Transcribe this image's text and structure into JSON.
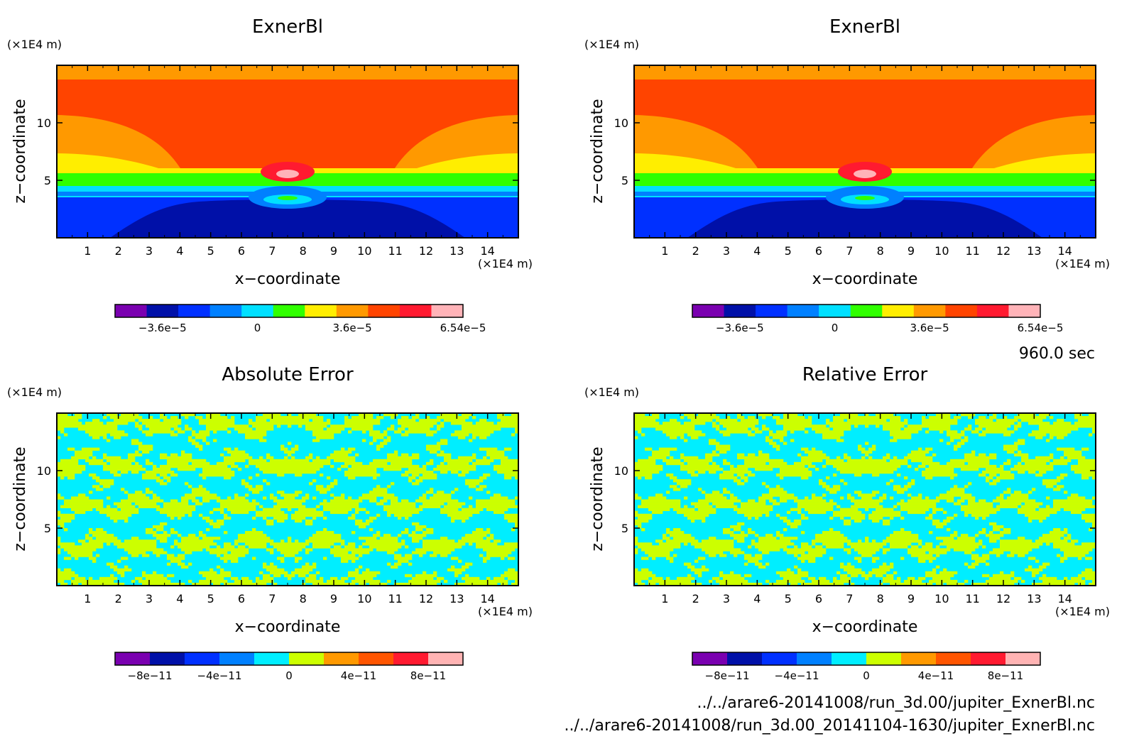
{
  "time_label": "960.0 sec",
  "files": [
    "../../arare6-20141008/run_3d.00/jupiter_ExnerBl.nc",
    "../../arare6-20141008/run_3d.00_20141104-1630/jupiter_ExnerBl.nc"
  ],
  "chart_data": [
    {
      "type": "heatmap",
      "title": "ExnerBl",
      "xlabel": "x−coordinate",
      "ylabel": "z−coordinate",
      "x_unit": "(×1E4 m)",
      "y_unit": "(×1E4 m)",
      "xlim": [
        0,
        15
      ],
      "ylim": [
        0,
        15
      ],
      "xticks": [
        1,
        2,
        3,
        4,
        5,
        6,
        7,
        8,
        9,
        10,
        11,
        12,
        13,
        14
      ],
      "yticks": [
        5,
        10
      ],
      "colorbar": {
        "colors": [
          "#7a00b0",
          "#0010a8",
          "#0030ff",
          "#0080ff",
          "#00e0ff",
          "#30ff00",
          "#ffee00",
          "#ff9900",
          "#ff4400",
          "#ff1a30",
          "#ffb3b8"
        ],
        "tick_values": [
          -3.6e-05,
          0,
          3.6e-05,
          6.54e-05
        ],
        "tick_labels": [
          "−3.6e−5",
          "0",
          "3.6e−5",
          "6.54e−5"
        ]
      }
    },
    {
      "type": "heatmap",
      "title": "ExnerBl",
      "xlabel": "x−coordinate",
      "ylabel": "z−coordinate",
      "x_unit": "(×1E4 m)",
      "y_unit": "(×1E4 m)",
      "xlim": [
        0,
        15
      ],
      "ylim": [
        0,
        15
      ],
      "xticks": [
        1,
        2,
        3,
        4,
        5,
        6,
        7,
        8,
        9,
        10,
        11,
        12,
        13,
        14
      ],
      "yticks": [
        5,
        10
      ],
      "colorbar": {
        "colors": [
          "#7a00b0",
          "#0010a8",
          "#0030ff",
          "#0080ff",
          "#00e0ff",
          "#30ff00",
          "#ffee00",
          "#ff9900",
          "#ff4400",
          "#ff1a30",
          "#ffb3b8"
        ],
        "tick_values": [
          -3.6e-05,
          0,
          3.6e-05,
          6.54e-05
        ],
        "tick_labels": [
          "−3.6e−5",
          "0",
          "3.6e−5",
          "6.54e−5"
        ]
      }
    },
    {
      "type": "heatmap",
      "title": "Absolute Error",
      "xlabel": "x−coordinate",
      "ylabel": "z−coordinate",
      "x_unit": "(×1E4 m)",
      "y_unit": "(×1E4 m)",
      "xlim": [
        0,
        15
      ],
      "ylim": [
        0,
        15
      ],
      "xticks": [
        1,
        2,
        3,
        4,
        5,
        6,
        7,
        8,
        9,
        10,
        11,
        12,
        13,
        14
      ],
      "yticks": [
        5,
        10
      ],
      "colorbar": {
        "colors": [
          "#7a00b0",
          "#0010a8",
          "#0030ff",
          "#0080ff",
          "#00eeff",
          "#ccff00",
          "#ff9900",
          "#ff5500",
          "#ff1a30",
          "#ffb3b3"
        ],
        "tick_values": [
          -8e-11,
          -4e-11,
          0,
          4e-11,
          8e-11
        ],
        "tick_labels": [
          "−8e−11",
          "−4e−11",
          "0",
          "4e−11",
          "8e−11"
        ]
      }
    },
    {
      "type": "heatmap",
      "title": "Relative Error",
      "xlabel": "x−coordinate",
      "ylabel": "z−coordinate",
      "x_unit": "(×1E4 m)",
      "y_unit": "(×1E4 m)",
      "xlim": [
        0,
        15
      ],
      "ylim": [
        0,
        15
      ],
      "xticks": [
        1,
        2,
        3,
        4,
        5,
        6,
        7,
        8,
        9,
        10,
        11,
        12,
        13,
        14
      ],
      "yticks": [
        5,
        10
      ],
      "colorbar": {
        "colors": [
          "#7a00b0",
          "#0010a8",
          "#0030ff",
          "#0080ff",
          "#00eeff",
          "#ccff00",
          "#ff9900",
          "#ff5500",
          "#ff1a30",
          "#ffb3b3"
        ],
        "tick_values": [
          -8e-11,
          -4e-11,
          0,
          4e-11,
          8e-11
        ],
        "tick_labels": [
          "−8e−11",
          "−4e−11",
          "0",
          "4e−11",
          "8e−11"
        ]
      }
    }
  ]
}
